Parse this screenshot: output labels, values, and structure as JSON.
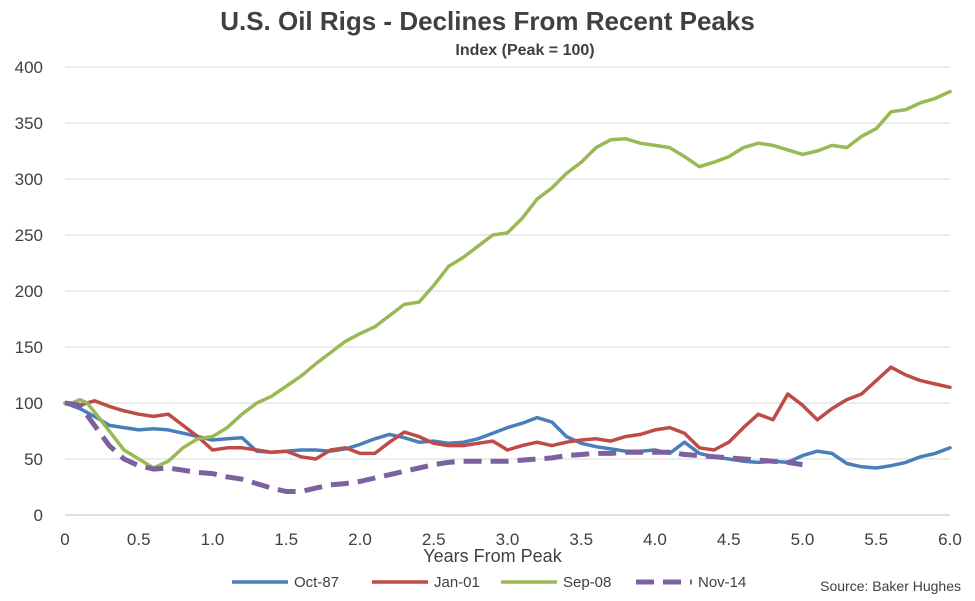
{
  "chart_data": {
    "type": "line",
    "title": "U.S. Oil Rigs - Declines From Recent Peaks",
    "subtitle": "Index (Peak = 100)",
    "xlabel": "Years From Peak",
    "ylabel": "",
    "xlim": [
      0,
      6
    ],
    "ylim": [
      0,
      400
    ],
    "x_ticks": [
      "0",
      "0.5",
      "1.0",
      "1.5",
      "2.0",
      "2.5",
      "3.0",
      "3.5",
      "4.0",
      "4.5",
      "5.0",
      "5.5",
      "6.0"
    ],
    "y_ticks": [
      "0",
      "50",
      "100",
      "150",
      "200",
      "250",
      "300",
      "350",
      "400"
    ],
    "grid": "horizontal",
    "legend_position": "bottom",
    "source": "Source: Baker Hughes",
    "series": [
      {
        "name": "Oct-87",
        "color": "#4a7ebb",
        "dashed": false,
        "x": [
          0,
          0.1,
          0.2,
          0.3,
          0.4,
          0.5,
          0.6,
          0.7,
          0.8,
          0.9,
          1.0,
          1.1,
          1.2,
          1.3,
          1.4,
          1.5,
          1.6,
          1.7,
          1.8,
          1.9,
          2.0,
          2.1,
          2.2,
          2.3,
          2.4,
          2.5,
          2.6,
          2.7,
          2.8,
          2.9,
          3.0,
          3.1,
          3.2,
          3.3,
          3.4,
          3.5,
          3.6,
          3.7,
          3.8,
          3.9,
          4.0,
          4.1,
          4.2,
          4.3,
          4.4,
          4.5,
          4.6,
          4.7,
          4.8,
          4.9,
          5.0,
          5.1,
          5.2,
          5.3,
          5.4,
          5.5,
          5.6,
          5.7,
          5.8,
          5.9,
          6.0
        ],
        "y": [
          100,
          95,
          88,
          80,
          78,
          76,
          77,
          76,
          73,
          70,
          67,
          68,
          69,
          57,
          56,
          57,
          58,
          58,
          57,
          59,
          63,
          68,
          72,
          69,
          65,
          66,
          64,
          65,
          68,
          73,
          78,
          82,
          87,
          83,
          70,
          64,
          61,
          59,
          57,
          57,
          58,
          55,
          65,
          55,
          52,
          50,
          48,
          47,
          48,
          47,
          53,
          57,
          55,
          46,
          43,
          42,
          44,
          47,
          52,
          55,
          60
        ]
      },
      {
        "name": "Jan-01",
        "color": "#be4b48",
        "dashed": false,
        "x": [
          0,
          0.1,
          0.2,
          0.3,
          0.4,
          0.5,
          0.6,
          0.7,
          0.8,
          0.9,
          1.0,
          1.1,
          1.2,
          1.3,
          1.4,
          1.5,
          1.6,
          1.7,
          1.8,
          1.9,
          2.0,
          2.1,
          2.2,
          2.3,
          2.4,
          2.5,
          2.6,
          2.7,
          2.8,
          2.9,
          3.0,
          3.1,
          3.2,
          3.3,
          3.4,
          3.5,
          3.6,
          3.7,
          3.8,
          3.9,
          4.0,
          4.1,
          4.2,
          4.3,
          4.4,
          4.5,
          4.6,
          4.7,
          4.8,
          4.9,
          5.0,
          5.1,
          5.2,
          5.3,
          5.4,
          5.5,
          5.6,
          5.7,
          5.8,
          5.9,
          6.0
        ],
        "y": [
          100,
          98,
          102,
          97,
          93,
          90,
          88,
          90,
          80,
          70,
          58,
          60,
          60,
          58,
          56,
          57,
          52,
          50,
          58,
          60,
          55,
          55,
          65,
          74,
          70,
          64,
          62,
          62,
          64,
          66,
          58,
          62,
          65,
          62,
          65,
          67,
          68,
          66,
          70,
          72,
          76,
          78,
          73,
          60,
          58,
          65,
          78,
          90,
          85,
          108,
          98,
          85,
          95,
          103,
          108,
          120,
          132,
          125,
          120,
          117,
          114
        ]
      },
      {
        "name": "Sep-08",
        "color": "#98b954",
        "dashed": false,
        "x": [
          0,
          0.05,
          0.1,
          0.15,
          0.2,
          0.3,
          0.4,
          0.5,
          0.6,
          0.7,
          0.8,
          0.9,
          1.0,
          1.1,
          1.2,
          1.3,
          1.4,
          1.5,
          1.6,
          1.7,
          1.8,
          1.9,
          2.0,
          2.1,
          2.2,
          2.3,
          2.4,
          2.5,
          2.6,
          2.7,
          2.8,
          2.9,
          3.0,
          3.1,
          3.2,
          3.3,
          3.4,
          3.5,
          3.6,
          3.7,
          3.8,
          3.9,
          4.0,
          4.1,
          4.2,
          4.3,
          4.4,
          4.5,
          4.6,
          4.7,
          4.8,
          4.9,
          5.0,
          5.1,
          5.2,
          5.3,
          5.4,
          5.5,
          5.6,
          5.7,
          5.8,
          5.9,
          6.0
        ],
        "y": [
          100,
          100,
          103,
          100,
          92,
          75,
          58,
          50,
          42,
          48,
          60,
          68,
          70,
          78,
          90,
          100,
          106,
          115,
          124,
          135,
          145,
          155,
          162,
          168,
          178,
          188,
          190,
          205,
          222,
          230,
          240,
          250,
          252,
          265,
          282,
          292,
          305,
          315,
          328,
          335,
          336,
          332,
          330,
          328,
          320,
          311,
          315,
          320,
          328,
          332,
          330,
          326,
          322,
          325,
          330,
          328,
          338,
          345,
          360,
          362,
          368,
          372,
          378
        ]
      },
      {
        "name": "Nov-14",
        "color": "#7d60a0",
        "dashed": true,
        "x": [
          0,
          0.1,
          0.2,
          0.3,
          0.4,
          0.5,
          0.6,
          0.7,
          0.8,
          0.9,
          1.0,
          1.1,
          1.2,
          1.3,
          1.4,
          1.5,
          1.6,
          1.7,
          1.8,
          1.9,
          2.0,
          2.1,
          2.2,
          2.3,
          2.4,
          2.5,
          2.6,
          2.7,
          2.8,
          2.9,
          3.0,
          3.1,
          3.2,
          3.3,
          3.4,
          3.5,
          3.6,
          3.7,
          3.8,
          3.9,
          4.0,
          4.1,
          4.2,
          4.3,
          4.4,
          4.5,
          4.6,
          4.7,
          4.8,
          4.9,
          5.0
        ],
        "y": [
          100,
          98,
          80,
          62,
          50,
          44,
          41,
          42,
          40,
          38,
          37,
          34,
          32,
          28,
          24,
          21,
          21,
          24,
          27,
          28,
          30,
          33,
          36,
          39,
          42,
          45,
          47,
          48,
          48,
          48,
          48,
          49,
          50,
          51,
          53,
          54,
          55,
          55,
          56,
          56,
          56,
          56,
          54,
          53,
          52,
          51,
          50,
          49,
          48,
          47,
          45
        ]
      }
    ]
  }
}
